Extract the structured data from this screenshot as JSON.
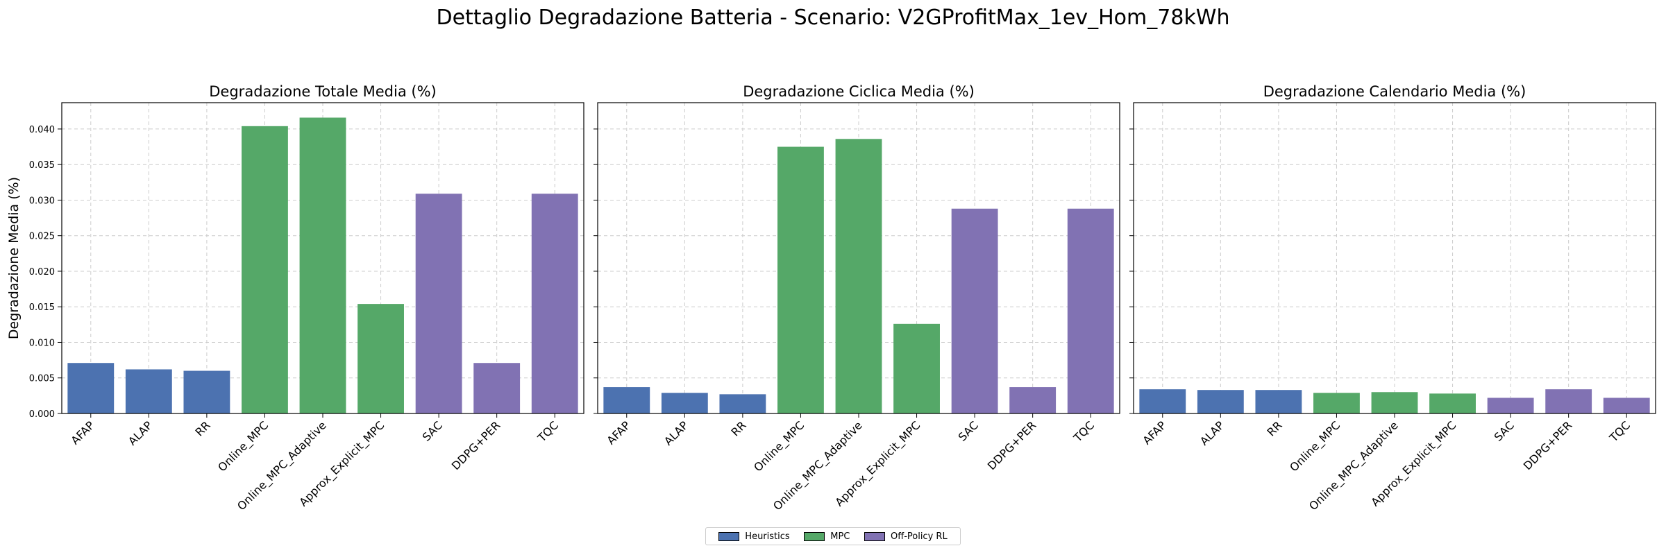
{
  "figure": {
    "title": "Dettaglio Degradazione Batteria - Scenario: V2GProfitMax_1ev_Hom_78kWh"
  },
  "legend": {
    "placement": "bottom-center",
    "items": [
      {
        "label": "Heuristics",
        "color": "#4c72b0"
      },
      {
        "label": "MPC",
        "color": "#55a868"
      },
      {
        "label": "Off-Policy RL",
        "color": "#8172b3"
      }
    ]
  },
  "chart_data": [
    {
      "type": "bar",
      "title": "Degradazione Totale Media (%)",
      "ylabel": "Degradazione Media (%)",
      "categories": [
        "AFAP",
        "ALAP",
        "RR",
        "Online_MPC",
        "Online_MPC_Adaptive",
        "Approx_Explicit_MPC",
        "SAC",
        "DDPG+PER",
        "TQC"
      ],
      "groups": [
        "Heuristics",
        "Heuristics",
        "Heuristics",
        "MPC",
        "MPC",
        "MPC",
        "Off-Policy RL",
        "Off-Policy RL",
        "Off-Policy RL"
      ],
      "values": [
        0.0071,
        0.0062,
        0.006,
        0.0404,
        0.0416,
        0.0154,
        0.0309,
        0.0071,
        0.0309
      ],
      "ylim": [
        0,
        0.0437
      ],
      "yticks": [
        "0.000",
        "0.005",
        "0.010",
        "0.015",
        "0.020",
        "0.025",
        "0.030",
        "0.035",
        "0.040"
      ],
      "grid": true
    },
    {
      "type": "bar",
      "title": "Degradazione Ciclica Media (%)",
      "ylabel": "",
      "categories": [
        "AFAP",
        "ALAP",
        "RR",
        "Online_MPC",
        "Online_MPC_Adaptive",
        "Approx_Explicit_MPC",
        "SAC",
        "DDPG+PER",
        "TQC"
      ],
      "groups": [
        "Heuristics",
        "Heuristics",
        "Heuristics",
        "MPC",
        "MPC",
        "MPC",
        "Off-Policy RL",
        "Off-Policy RL",
        "Off-Policy RL"
      ],
      "values": [
        0.0037,
        0.0029,
        0.0027,
        0.0375,
        0.0386,
        0.0126,
        0.0288,
        0.0037,
        0.0288
      ],
      "ylim": [
        0,
        0.0437
      ],
      "yticks": [],
      "grid": true
    },
    {
      "type": "bar",
      "title": "Degradazione Calendario Media (%)",
      "ylabel": "",
      "categories": [
        "AFAP",
        "ALAP",
        "RR",
        "Online_MPC",
        "Online_MPC_Adaptive",
        "Approx_Explicit_MPC",
        "SAC",
        "DDPG+PER",
        "TQC"
      ],
      "groups": [
        "Heuristics",
        "Heuristics",
        "Heuristics",
        "MPC",
        "MPC",
        "MPC",
        "Off-Policy RL",
        "Off-Policy RL",
        "Off-Policy RL"
      ],
      "values": [
        0.0034,
        0.0033,
        0.0033,
        0.0029,
        0.003,
        0.0028,
        0.0022,
        0.0034,
        0.0022
      ],
      "ylim": [
        0,
        0.0437
      ],
      "yticks": [],
      "grid": true
    }
  ]
}
